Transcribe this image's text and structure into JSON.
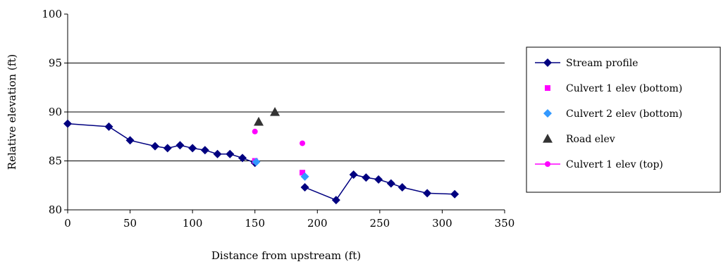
{
  "chart_data": {
    "type": "line",
    "title": "",
    "xlabel": "Distance from upstream (ft)",
    "ylabel": "Relative elevation (ft)",
    "xlim": [
      0,
      350
    ],
    "ylim": [
      80,
      100
    ],
    "x_ticks": [
      "0",
      "50",
      "100",
      "150",
      "200",
      "250",
      "300",
      "350"
    ],
    "y_ticks": [
      "80",
      "85",
      "90",
      "95",
      "100"
    ],
    "grid": "horizontal major lines at 85, 90, 95",
    "legend_position": "right",
    "series": [
      {
        "name": "Stream profile",
        "marker": "diamond",
        "line": true,
        "color": "#000080",
        "points": [
          [
            0,
            88.8
          ],
          [
            33,
            88.5
          ],
          [
            50,
            87.1
          ],
          [
            70,
            86.5
          ],
          [
            80,
            86.3
          ],
          [
            90,
            86.6
          ],
          [
            100,
            86.3
          ],
          [
            110,
            86.1
          ],
          [
            120,
            85.7
          ],
          [
            130,
            85.7
          ],
          [
            140,
            85.3
          ],
          [
            150,
            84.8
          ]
        ]
      },
      {
        "name": "",
        "marker": "diamond",
        "line": true,
        "color": "#000080",
        "points": [
          [
            190,
            82.3
          ],
          [
            215,
            81.0
          ],
          [
            229,
            83.6
          ],
          [
            239,
            83.3
          ],
          [
            249,
            83.1
          ],
          [
            259,
            82.7
          ],
          [
            268,
            82.3
          ],
          [
            288,
            81.7
          ],
          [
            310,
            81.6
          ]
        ]
      },
      {
        "name": "Culvert 1 elev (bottom)",
        "marker": "square",
        "line": false,
        "color": "#ff00ff",
        "points": [
          [
            150,
            85.0
          ],
          [
            188,
            83.8
          ]
        ]
      },
      {
        "name": "Culvert 2 elev (bottom)",
        "marker": "diamond",
        "line": false,
        "color": "#3399ff",
        "points": [
          [
            151,
            84.9
          ],
          [
            190,
            83.4
          ]
        ]
      },
      {
        "name": "Road elev",
        "marker": "triangle",
        "line": false,
        "color": "#333333",
        "points": [
          [
            153,
            89.0
          ],
          [
            166,
            90.0
          ]
        ]
      },
      {
        "name": "Culvert 1 elev (top)",
        "marker": "circle",
        "line": true,
        "color": "#ff00ff",
        "points": [
          [
            150,
            88.0
          ],
          [
            188,
            86.8
          ]
        ]
      }
    ]
  }
}
